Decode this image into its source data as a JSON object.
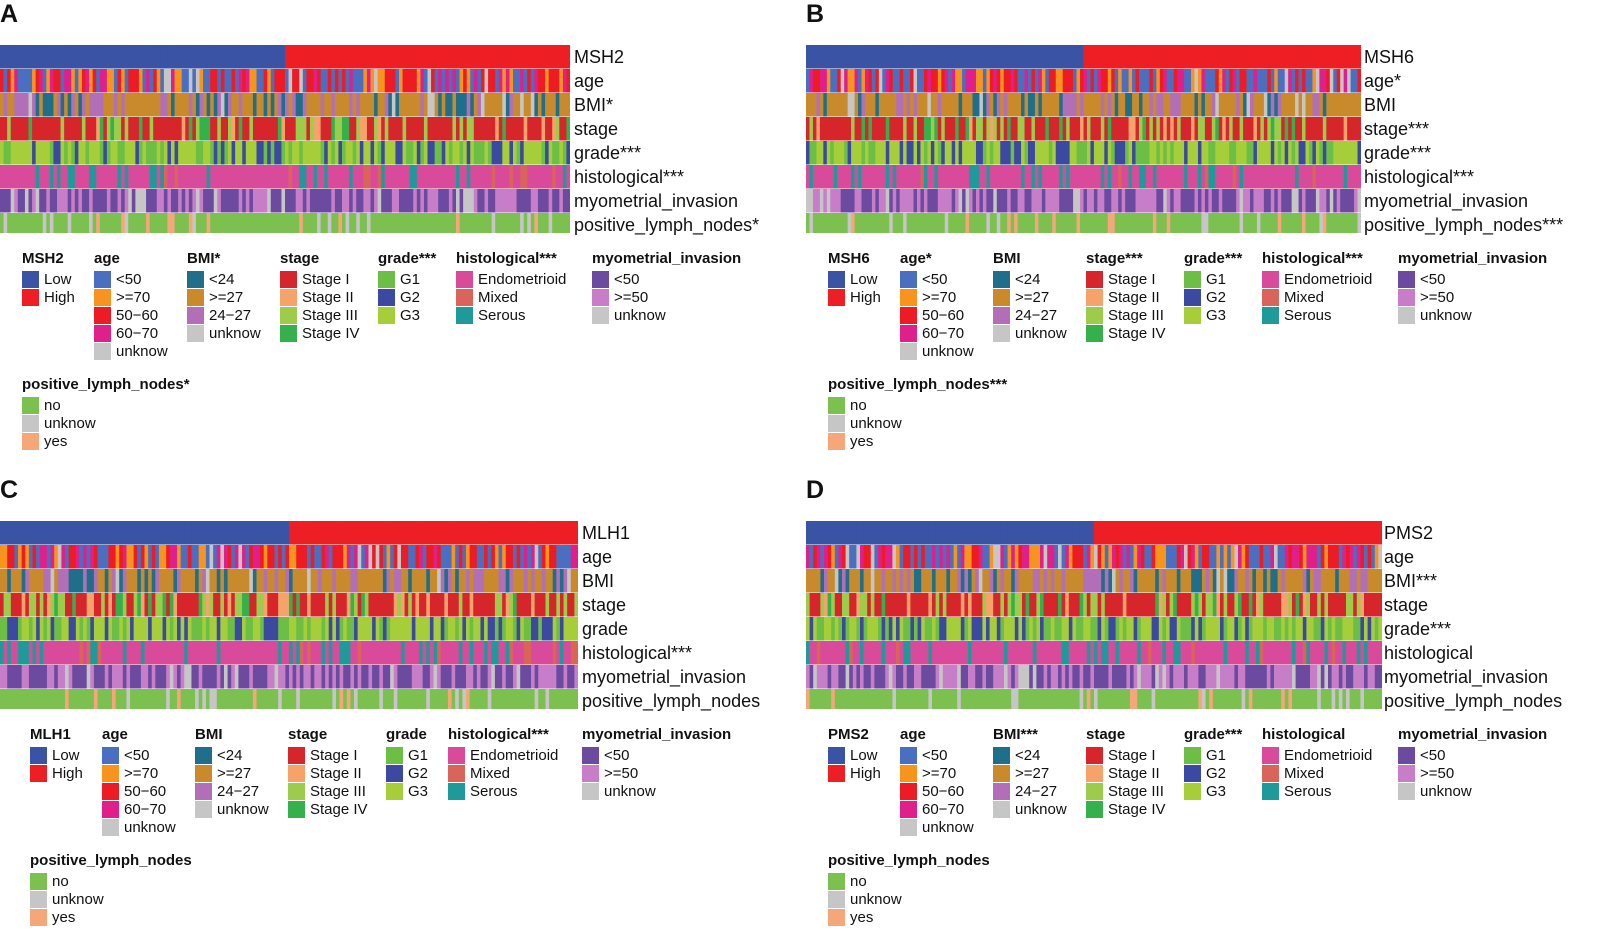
{
  "chart_data": [
    {
      "type": "heatmap",
      "panel": "A",
      "gene": "MSH2",
      "low_fraction": 0.5,
      "rows": [
        "MSH2",
        "age",
        "BMI*",
        "stage",
        "grade***",
        "histological***",
        "myometrial_invasion",
        "positive_lymph_nodes*"
      ],
      "legends": [
        {
          "title": "MSH2",
          "items": [
            "Low",
            "High"
          ]
        },
        {
          "title": "age",
          "items": [
            "<50",
            ">=70",
            "50−60",
            "60−70",
            "unknow"
          ]
        },
        {
          "title": "BMI*",
          "items": [
            "<24",
            ">=27",
            "24−27",
            "unknow"
          ]
        },
        {
          "title": "stage",
          "items": [
            "Stage I",
            "Stage II",
            "Stage III",
            "Stage IV"
          ]
        },
        {
          "title": "grade***",
          "items": [
            "G1",
            "G2",
            "G3"
          ]
        },
        {
          "title": "histological***",
          "items": [
            "Endometrioid",
            "Mixed",
            "Serous"
          ]
        },
        {
          "title": "myometrial_invasion",
          "items": [
            "<50",
            ">=50",
            "unknow"
          ]
        },
        {
          "title": "positive_lymph_nodes*",
          "items": [
            "no",
            "unknow",
            "yes"
          ]
        }
      ]
    },
    {
      "type": "heatmap",
      "panel": "B",
      "gene": "MSH6",
      "low_fraction": 0.5,
      "rows": [
        "MSH6",
        "age*",
        "BMI",
        "stage***",
        "grade***",
        "histological***",
        "myometrial_invasion",
        "positive_lymph_nodes***"
      ],
      "legends": [
        {
          "title": "MSH6",
          "items": [
            "Low",
            "High"
          ]
        },
        {
          "title": "age*",
          "items": [
            "<50",
            ">=70",
            "50−60",
            "60−70",
            "unknow"
          ]
        },
        {
          "title": "BMI",
          "items": [
            "<24",
            ">=27",
            "24−27",
            "unknow"
          ]
        },
        {
          "title": "stage***",
          "items": [
            "Stage I",
            "Stage II",
            "Stage III",
            "Stage IV"
          ]
        },
        {
          "title": "grade***",
          "items": [
            "G1",
            "G2",
            "G3"
          ]
        },
        {
          "title": "histological***",
          "items": [
            "Endometrioid",
            "Mixed",
            "Serous"
          ]
        },
        {
          "title": "myometrial_invasion",
          "items": [
            "<50",
            ">=50",
            "unknow"
          ]
        },
        {
          "title": "positive_lymph_nodes***",
          "items": [
            "no",
            "unknow",
            "yes"
          ]
        }
      ]
    },
    {
      "type": "heatmap",
      "panel": "C",
      "gene": "MLH1",
      "low_fraction": 0.5,
      "rows": [
        "MLH1",
        "age",
        "BMI",
        "stage",
        "grade",
        "histological***",
        "myometrial_invasion",
        "positive_lymph_nodes"
      ],
      "legends": [
        {
          "title": "MLH1",
          "items": [
            "Low",
            "High"
          ]
        },
        {
          "title": "age",
          "items": [
            "<50",
            ">=70",
            "50−60",
            "60−70",
            "unknow"
          ]
        },
        {
          "title": "BMI",
          "items": [
            "<24",
            ">=27",
            "24−27",
            "unknow"
          ]
        },
        {
          "title": "stage",
          "items": [
            "Stage I",
            "Stage II",
            "Stage III",
            "Stage IV"
          ]
        },
        {
          "title": "grade",
          "items": [
            "G1",
            "G2",
            "G3"
          ]
        },
        {
          "title": "histological***",
          "items": [
            "Endometrioid",
            "Mixed",
            "Serous"
          ]
        },
        {
          "title": "myometrial_invasion",
          "items": [
            "<50",
            ">=50",
            "unknow"
          ]
        },
        {
          "title": "positive_lymph_nodes",
          "items": [
            "no",
            "unknow",
            "yes"
          ]
        }
      ]
    },
    {
      "type": "heatmap",
      "panel": "D",
      "gene": "PMS2",
      "low_fraction": 0.5,
      "rows": [
        "PMS2",
        "age",
        "BMI***",
        "stage",
        "grade***",
        "histological",
        "myometrial_invasion",
        "positive_lymph_nodes"
      ],
      "legends": [
        {
          "title": "PMS2",
          "items": [
            "Low",
            "High"
          ]
        },
        {
          "title": "age",
          "items": [
            "<50",
            ">=70",
            "50−60",
            "60−70",
            "unknow"
          ]
        },
        {
          "title": "BMI***",
          "items": [
            "<24",
            ">=27",
            "24−27",
            "unknow"
          ]
        },
        {
          "title": "stage",
          "items": [
            "Stage I",
            "Stage II",
            "Stage III",
            "Stage IV"
          ]
        },
        {
          "title": "grade***",
          "items": [
            "G1",
            "G2",
            "G3"
          ]
        },
        {
          "title": "histological",
          "items": [
            "Endometrioid",
            "Mixed",
            "Serous"
          ]
        },
        {
          "title": "myometrial_invasion",
          "items": [
            "<50",
            ">=50",
            "unknow"
          ]
        },
        {
          "title": "positive_lymph_nodes",
          "items": [
            "no",
            "unknow",
            "yes"
          ]
        }
      ]
    }
  ],
  "palette": [
    [
      "#3a53a4",
      "#ed1f24"
    ],
    [
      "#4a6fc1",
      "#f7941d",
      "#ed1c24",
      "#e0208a",
      "#c6c6c6"
    ],
    [
      "#1f6f8b",
      "#c88a2a",
      "#b26fb8",
      "#c6c6c6"
    ],
    [
      "#d7262b",
      "#f6a26b",
      "#9ccc4a",
      "#35b04a"
    ],
    [
      "#6dbe45",
      "#3b4aa0",
      "#a6ce39"
    ],
    [
      "#d94a9a",
      "#d9645a",
      "#1f9a9a"
    ],
    [
      "#6c4aa0",
      "#c77dc7",
      "#c6c6c6"
    ],
    [
      "#7cc14f",
      "#c6c6c6",
      "#f5a77a"
    ]
  ],
  "category_weights": [
    [
      1,
      1
    ],
    [
      0.32,
      0.16,
      0.27,
      0.2,
      0.05
    ],
    [
      0.18,
      0.58,
      0.2,
      0.04
    ],
    [
      0.62,
      0.1,
      0.2,
      0.08
    ],
    [
      0.3,
      0.25,
      0.45
    ],
    [
      0.76,
      0.06,
      0.18
    ],
    [
      0.48,
      0.42,
      0.1
    ],
    [
      0.82,
      0.1,
      0.08
    ]
  ]
}
